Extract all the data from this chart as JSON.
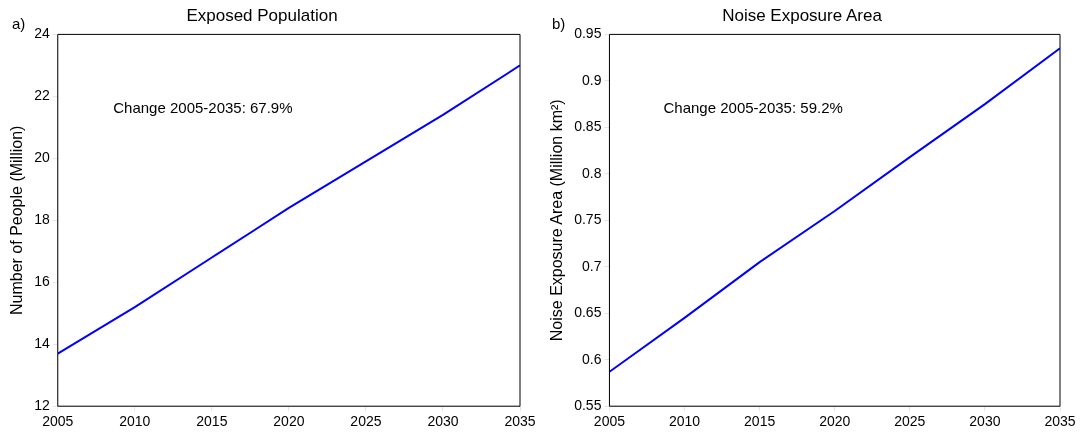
{
  "chart_data": [
    {
      "type": "line",
      "title": "Exposed Population",
      "ylabel": "Number of People (Million)",
      "annotations": [
        "a)",
        "Change 2005-2035: 67.9%"
      ],
      "x": [
        2005,
        2010,
        2015,
        2020,
        2025,
        2030,
        2035
      ],
      "series": [
        {
          "color": "#0000ff",
          "values": [
            13.7,
            15.2,
            16.8,
            18.4,
            19.9,
            21.4,
            23.0
          ]
        }
      ],
      "xlim": [
        2005,
        2035
      ],
      "xticks": [
        2005,
        2010,
        2015,
        2020,
        2025,
        2030,
        2035
      ],
      "ylim": [
        12,
        24
      ],
      "yticks": [
        12,
        14,
        16,
        18,
        20,
        22,
        24
      ],
      "grid": false,
      "legend": false,
      "marker": "none",
      "line_style": "solid"
    },
    {
      "type": "line",
      "title": "Noise Exposure Area",
      "ylabel": "Noise Exposure Area (Million km²)",
      "annotations": [
        "b)",
        "Change 2005-2035: 59.2%"
      ],
      "x": [
        2005,
        2010,
        2015,
        2020,
        2025,
        2030,
        2035
      ],
      "series": [
        {
          "color": "#0000ff",
          "values": [
            0.587,
            0.645,
            0.705,
            0.76,
            0.818,
            0.875,
            0.935
          ]
        }
      ],
      "xlim": [
        2005,
        2035
      ],
      "xticks": [
        2005,
        2010,
        2015,
        2020,
        2025,
        2030,
        2035
      ],
      "ylim": [
        0.55,
        0.95
      ],
      "yticks": [
        0.55,
        0.6,
        0.65,
        0.7,
        0.75,
        0.8,
        0.85,
        0.9,
        0.95
      ],
      "grid": false,
      "legend": false,
      "marker": "none",
      "line_style": "solid"
    }
  ]
}
